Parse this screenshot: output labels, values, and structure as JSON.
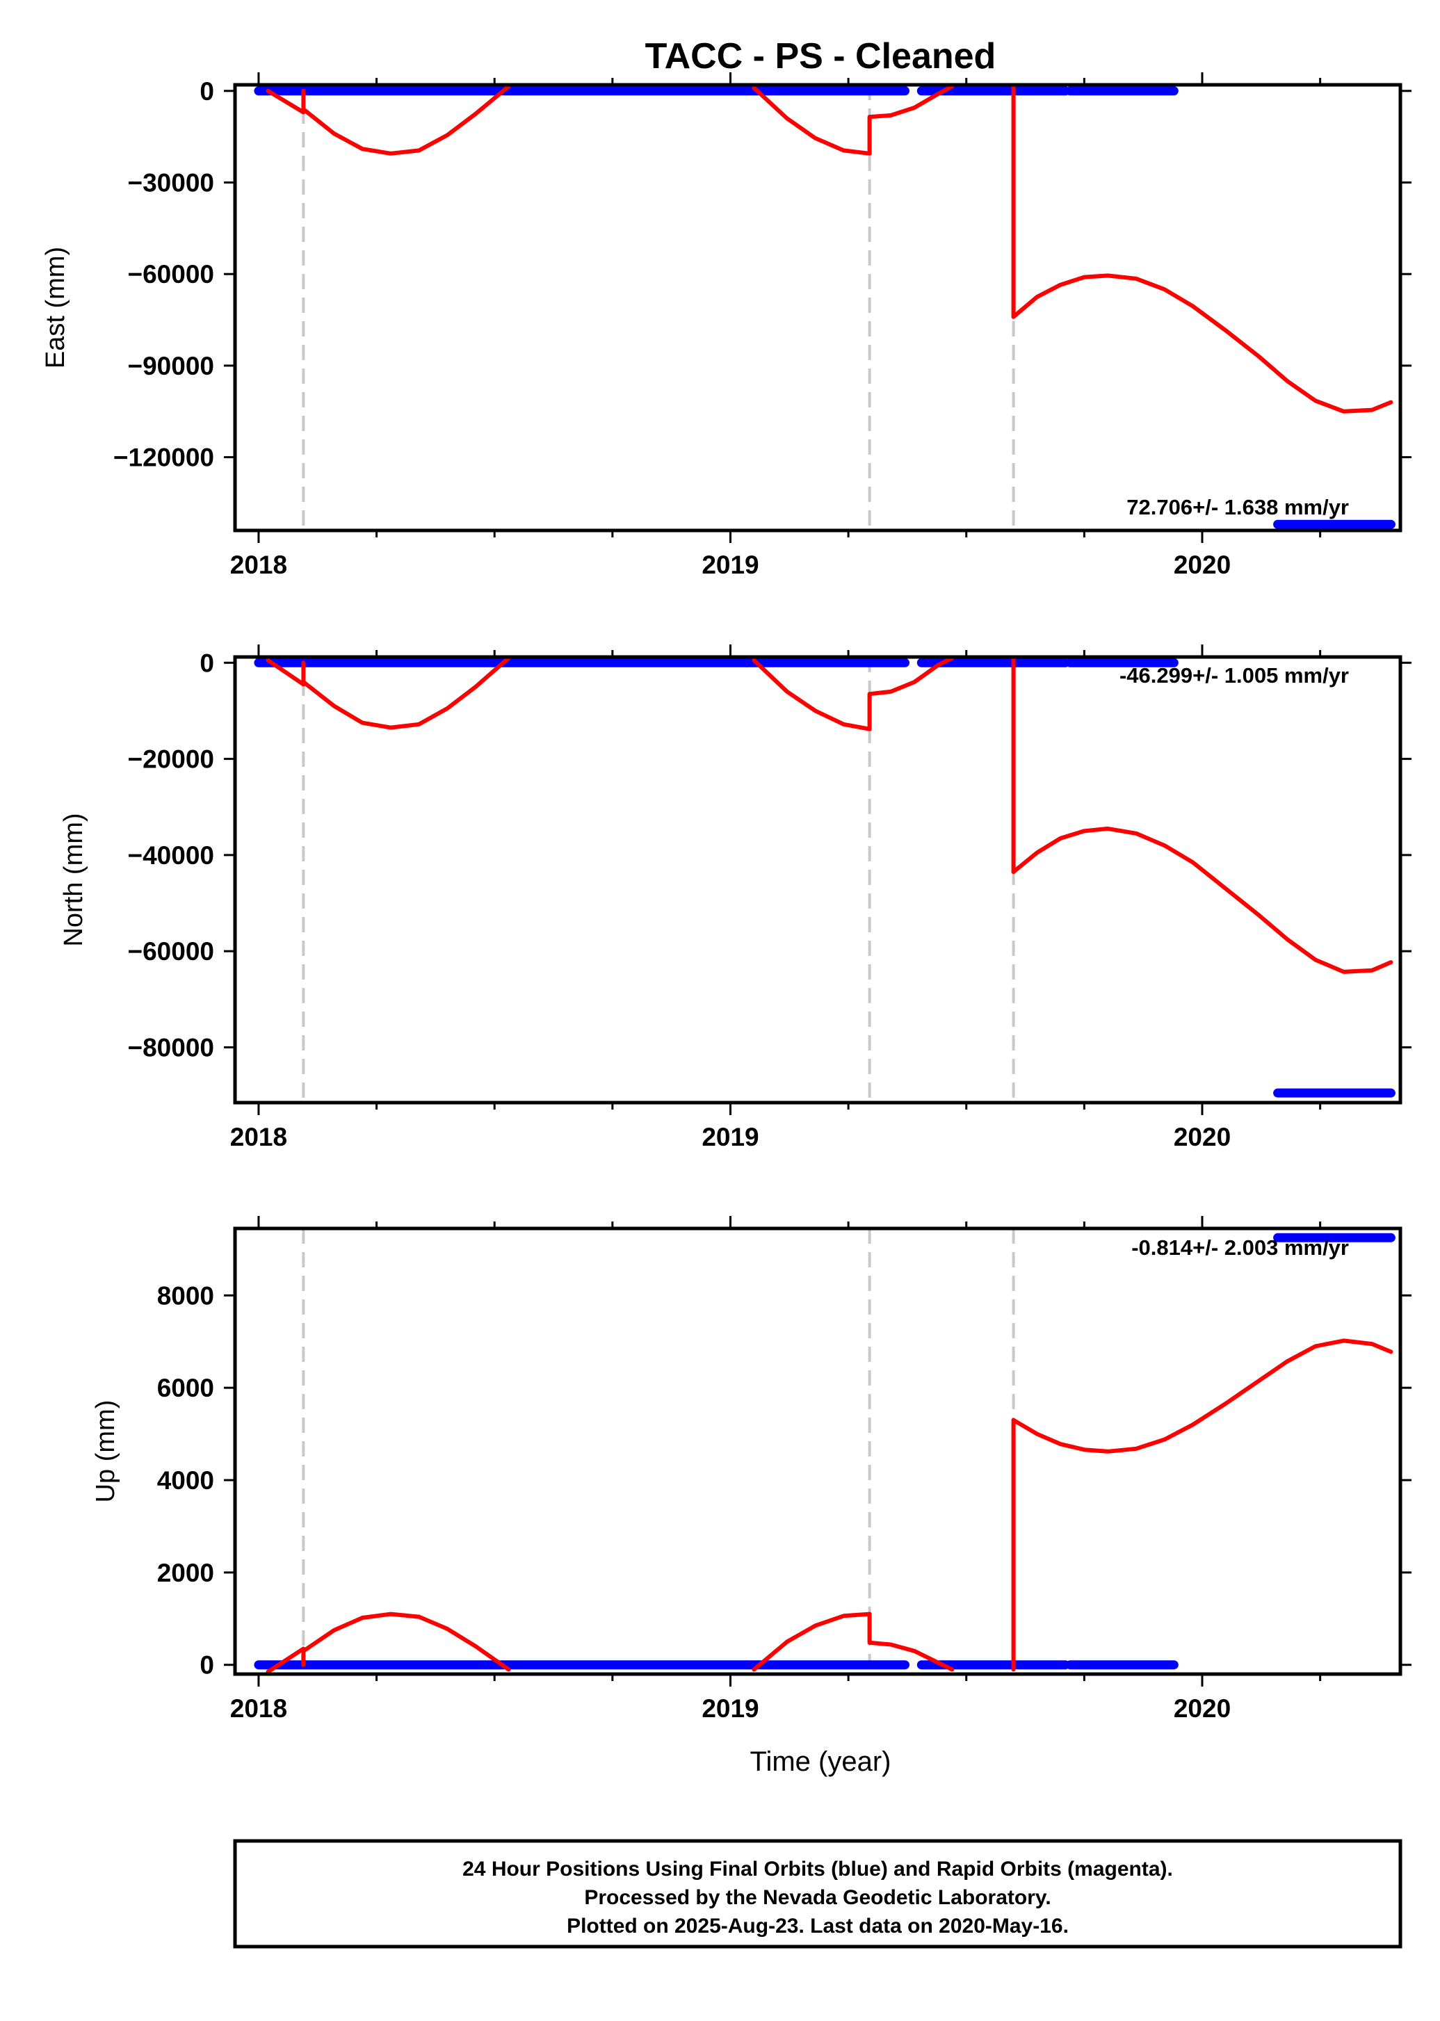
{
  "title": "TACC  - PS - Cleaned",
  "xlabel": "Time (year)",
  "colors": {
    "final_orbits": "#0000ff",
    "model_fit": "#ff0000",
    "steps": "#c8c8c8",
    "frame": "#000000"
  },
  "chart_data": [
    {
      "type": "scatter",
      "panel": "east",
      "title": "TACC  - PS - Cleaned",
      "xlabel": "",
      "ylabel": "East (mm)",
      "xlim": [
        2017.95,
        2020.42
      ],
      "ylim": [
        -144000,
        2000
      ],
      "yticks": [
        0,
        -30000,
        -60000,
        -90000,
        -120000
      ],
      "ytick_labels": [
        "0",
        "−30000",
        "−60000",
        "−90000",
        "−120000"
      ],
      "xticks": [
        2018,
        2019,
        2020
      ],
      "xtick_labels": [
        "2018",
        "2019",
        "2020"
      ],
      "rate_label": "72.706+/- 1.638 mm/yr",
      "step_epochs": [
        2018.095,
        2019.295,
        2019.6
      ],
      "series": [
        {
          "style": "dots",
          "color": "#0000ff",
          "segments": [
            {
              "x": [
                2018.0,
                2019.035
              ],
              "y": [
                0,
                0
              ]
            },
            {
              "x": [
                2019.035,
                2019.37
              ],
              "y": [
                0,
                0
              ]
            },
            {
              "x": [
                2019.405,
                2019.71
              ],
              "y": [
                0,
                0
              ]
            },
            {
              "x": [
                2019.72,
                2019.94
              ],
              "y": [
                0,
                0
              ]
            },
            {
              "x": [
                2020.16,
                2020.4
              ],
              "y": [
                -142000,
                -142000
              ]
            }
          ]
        },
        {
          "style": "line",
          "color": "#ff0000",
          "segments": [
            {
              "x": [
                2018.02,
                2018.095,
                2018.095
              ],
              "y": [
                0,
                -7000,
                0
              ]
            },
            {
              "x": [
                2018.095,
                2018.16,
                2018.22,
                2018.28,
                2018.34,
                2018.4,
                2018.46,
                2018.53
              ],
              "y": [
                -6000,
                -14000,
                -19000,
                -20500,
                -19500,
                -14500,
                -7500,
                1500
              ]
            },
            {
              "x": [
                2019.05,
                2019.12,
                2019.18,
                2019.24,
                2019.295
              ],
              "y": [
                1000,
                -9000,
                -15500,
                -19500,
                -20500
              ]
            },
            {
              "x": [
                2019.295,
                2019.295,
                2019.34,
                2019.39,
                2019.44,
                2019.47
              ],
              "y": [
                -20500,
                -8500,
                -8000,
                -5500,
                -1000,
                1500
              ]
            },
            {
              "x": [
                2019.6,
                2019.6
              ],
              "y": [
                1500,
                -74000
              ]
            },
            {
              "x": [
                2019.6,
                2019.65,
                2019.7,
                2019.75,
                2019.8,
                2019.86,
                2019.92,
                2019.98,
                2020.05,
                2020.12,
                2020.18,
                2020.24,
                2020.3,
                2020.36,
                2020.4
              ],
              "y": [
                -74000,
                -67500,
                -63500,
                -61000,
                -60500,
                -61500,
                -65000,
                -70500,
                -78500,
                -87000,
                -95000,
                -101500,
                -105000,
                -104500,
                -102000
              ]
            }
          ]
        }
      ]
    },
    {
      "type": "scatter",
      "panel": "north",
      "xlabel": "",
      "ylabel": "North (mm)",
      "xlim": [
        2017.95,
        2020.42
      ],
      "ylim": [
        -91500,
        1200
      ],
      "yticks": [
        0,
        -20000,
        -40000,
        -60000,
        -80000
      ],
      "ytick_labels": [
        "0",
        "−20000",
        "−40000",
        "−60000",
        "−80000"
      ],
      "xticks": [
        2018,
        2019,
        2020
      ],
      "xtick_labels": [
        "2018",
        "2019",
        "2020"
      ],
      "rate_label": "-46.299+/- 1.005 mm/yr",
      "step_epochs": [
        2018.095,
        2019.295,
        2019.6
      ],
      "series": [
        {
          "style": "dots",
          "color": "#0000ff",
          "segments": [
            {
              "x": [
                2018.0,
                2019.035
              ],
              "y": [
                0,
                0
              ]
            },
            {
              "x": [
                2019.035,
                2019.37
              ],
              "y": [
                0,
                0
              ]
            },
            {
              "x": [
                2019.405,
                2019.71
              ],
              "y": [
                0,
                0
              ]
            },
            {
              "x": [
                2019.72,
                2019.94
              ],
              "y": [
                0,
                0
              ]
            },
            {
              "x": [
                2020.16,
                2020.4
              ],
              "y": [
                -89500,
                -89500
              ]
            }
          ]
        },
        {
          "style": "line",
          "color": "#ff0000",
          "segments": [
            {
              "x": [
                2018.02,
                2018.095,
                2018.095
              ],
              "y": [
                500,
                -4500,
                0
              ]
            },
            {
              "x": [
                2018.095,
                2018.16,
                2018.22,
                2018.28,
                2018.34,
                2018.4,
                2018.46,
                2018.53
              ],
              "y": [
                -4000,
                -9000,
                -12500,
                -13500,
                -12800,
                -9500,
                -5000,
                1000
              ]
            },
            {
              "x": [
                2019.05,
                2019.12,
                2019.18,
                2019.24,
                2019.295
              ],
              "y": [
                500,
                -6000,
                -10000,
                -12800,
                -13800
              ]
            },
            {
              "x": [
                2019.295,
                2019.295,
                2019.34,
                2019.39,
                2019.44,
                2019.47
              ],
              "y": [
                -13800,
                -6500,
                -6000,
                -4000,
                -500,
                1000
              ]
            },
            {
              "x": [
                2019.6,
                2019.6
              ],
              "y": [
                1000,
                -43500
              ]
            },
            {
              "x": [
                2019.6,
                2019.65,
                2019.7,
                2019.75,
                2019.8,
                2019.86,
                2019.92,
                2019.98,
                2020.05,
                2020.12,
                2020.18,
                2020.24,
                2020.3,
                2020.36,
                2020.4
              ],
              "y": [
                -43500,
                -39500,
                -36500,
                -35000,
                -34500,
                -35500,
                -38000,
                -41500,
                -47000,
                -52500,
                -57500,
                -61800,
                -64300,
                -64000,
                -62300
              ]
            }
          ]
        }
      ]
    },
    {
      "type": "scatter",
      "panel": "up",
      "xlabel": "Time (year)",
      "ylabel": "Up (mm)",
      "xlim": [
        2017.95,
        2020.42
      ],
      "ylim": [
        -200,
        9450
      ],
      "yticks": [
        0,
        2000,
        4000,
        6000,
        8000
      ],
      "ytick_labels": [
        "0",
        "2000",
        "4000",
        "6000",
        "8000"
      ],
      "xticks": [
        2018,
        2019,
        2020
      ],
      "xtick_labels": [
        "2018",
        "2019",
        "2020"
      ],
      "rate_label": "-0.814+/- 2.003 mm/yr",
      "step_epochs": [
        2018.095,
        2019.295,
        2019.6
      ],
      "series": [
        {
          "style": "dots",
          "color": "#0000ff",
          "segments": [
            {
              "x": [
                2018.0,
                2019.035
              ],
              "y": [
                0,
                0
              ]
            },
            {
              "x": [
                2019.035,
                2019.37
              ],
              "y": [
                0,
                0
              ]
            },
            {
              "x": [
                2019.405,
                2019.71
              ],
              "y": [
                0,
                0
              ]
            },
            {
              "x": [
                2019.72,
                2019.94
              ],
              "y": [
                0,
                0
              ]
            },
            {
              "x": [
                2020.16,
                2020.4
              ],
              "y": [
                9250,
                9250
              ]
            }
          ]
        },
        {
          "style": "line",
          "color": "#ff0000",
          "segments": [
            {
              "x": [
                2018.02,
                2018.095,
                2018.095
              ],
              "y": [
                -150,
                350,
                0
              ]
            },
            {
              "x": [
                2018.095,
                2018.16,
                2018.22,
                2018.28,
                2018.34,
                2018.4,
                2018.46,
                2018.53
              ],
              "y": [
                300,
                750,
                1020,
                1100,
                1040,
                780,
                400,
                -100
              ]
            },
            {
              "x": [
                2019.05,
                2019.12,
                2019.18,
                2019.24,
                2019.295
              ],
              "y": [
                -100,
                500,
                850,
                1060,
                1100
              ]
            },
            {
              "x": [
                2019.295,
                2019.295,
                2019.34,
                2019.39,
                2019.44,
                2019.47
              ],
              "y": [
                1100,
                480,
                440,
                300,
                50,
                -100
              ]
            },
            {
              "x": [
                2019.6,
                2019.6
              ],
              "y": [
                -100,
                5300
              ]
            },
            {
              "x": [
                2019.6,
                2019.65,
                2019.7,
                2019.75,
                2019.8,
                2019.86,
                2019.92,
                2019.98,
                2020.05,
                2020.12,
                2020.18,
                2020.24,
                2020.3,
                2020.36,
                2020.4
              ],
              "y": [
                5300,
                5000,
                4780,
                4660,
                4620,
                4680,
                4880,
                5200,
                5660,
                6150,
                6570,
                6900,
                7020,
                6950,
                6780
              ]
            }
          ]
        }
      ]
    }
  ],
  "footer": {
    "line1": "24 Hour Positions Using Final Orbits (blue) and Rapid Orbits (magenta).",
    "line2": "Processed by the Nevada Geodetic Laboratory.",
    "line3": "Plotted on 2025-Aug-23. Last data on 2020-May-16."
  }
}
